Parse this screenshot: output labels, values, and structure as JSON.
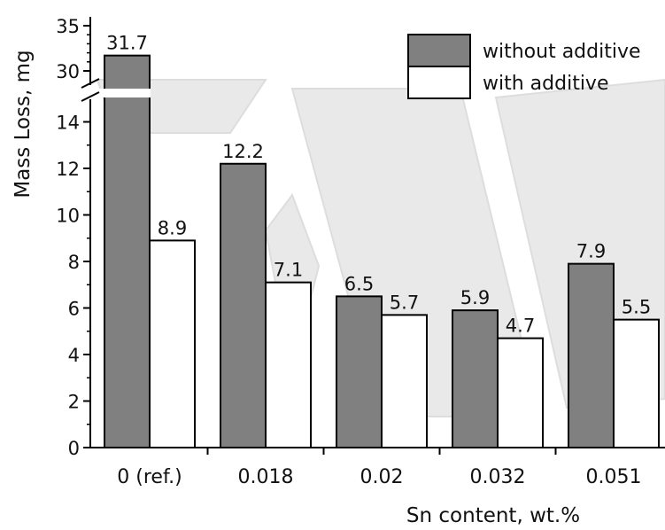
{
  "chart_data": {
    "type": "bar",
    "title": "",
    "xlabel": "Sn content, wt.%",
    "ylabel": "Mass Loss, mg",
    "categories": [
      "0 (ref.)",
      "0.018",
      "0.02",
      "0.032",
      "0.051"
    ],
    "series": [
      {
        "name": "without additive",
        "values": [
          31.7,
          12.2,
          6.5,
          5.9,
          7.9
        ],
        "labels": [
          "31.7",
          "12.2",
          "6.5",
          "5.9",
          "7.9"
        ],
        "color": "#808080"
      },
      {
        "name": "with additive",
        "values": [
          8.9,
          7.1,
          5.7,
          4.7,
          5.5
        ],
        "labels": [
          "8.9",
          "7.1",
          "5.7",
          "4.7",
          "5.5"
        ],
        "color": "#ffffff"
      }
    ],
    "y_axis_broken": true,
    "ylim_lower": [
      0,
      15
    ],
    "ylim_upper": [
      28.5,
      35
    ],
    "yticks_lower": [
      "0",
      "2",
      "4",
      "6",
      "8",
      "10",
      "12",
      "14"
    ],
    "yticks_upper": [
      "30",
      "35"
    ],
    "legend_position": "top-right",
    "grid": false
  }
}
